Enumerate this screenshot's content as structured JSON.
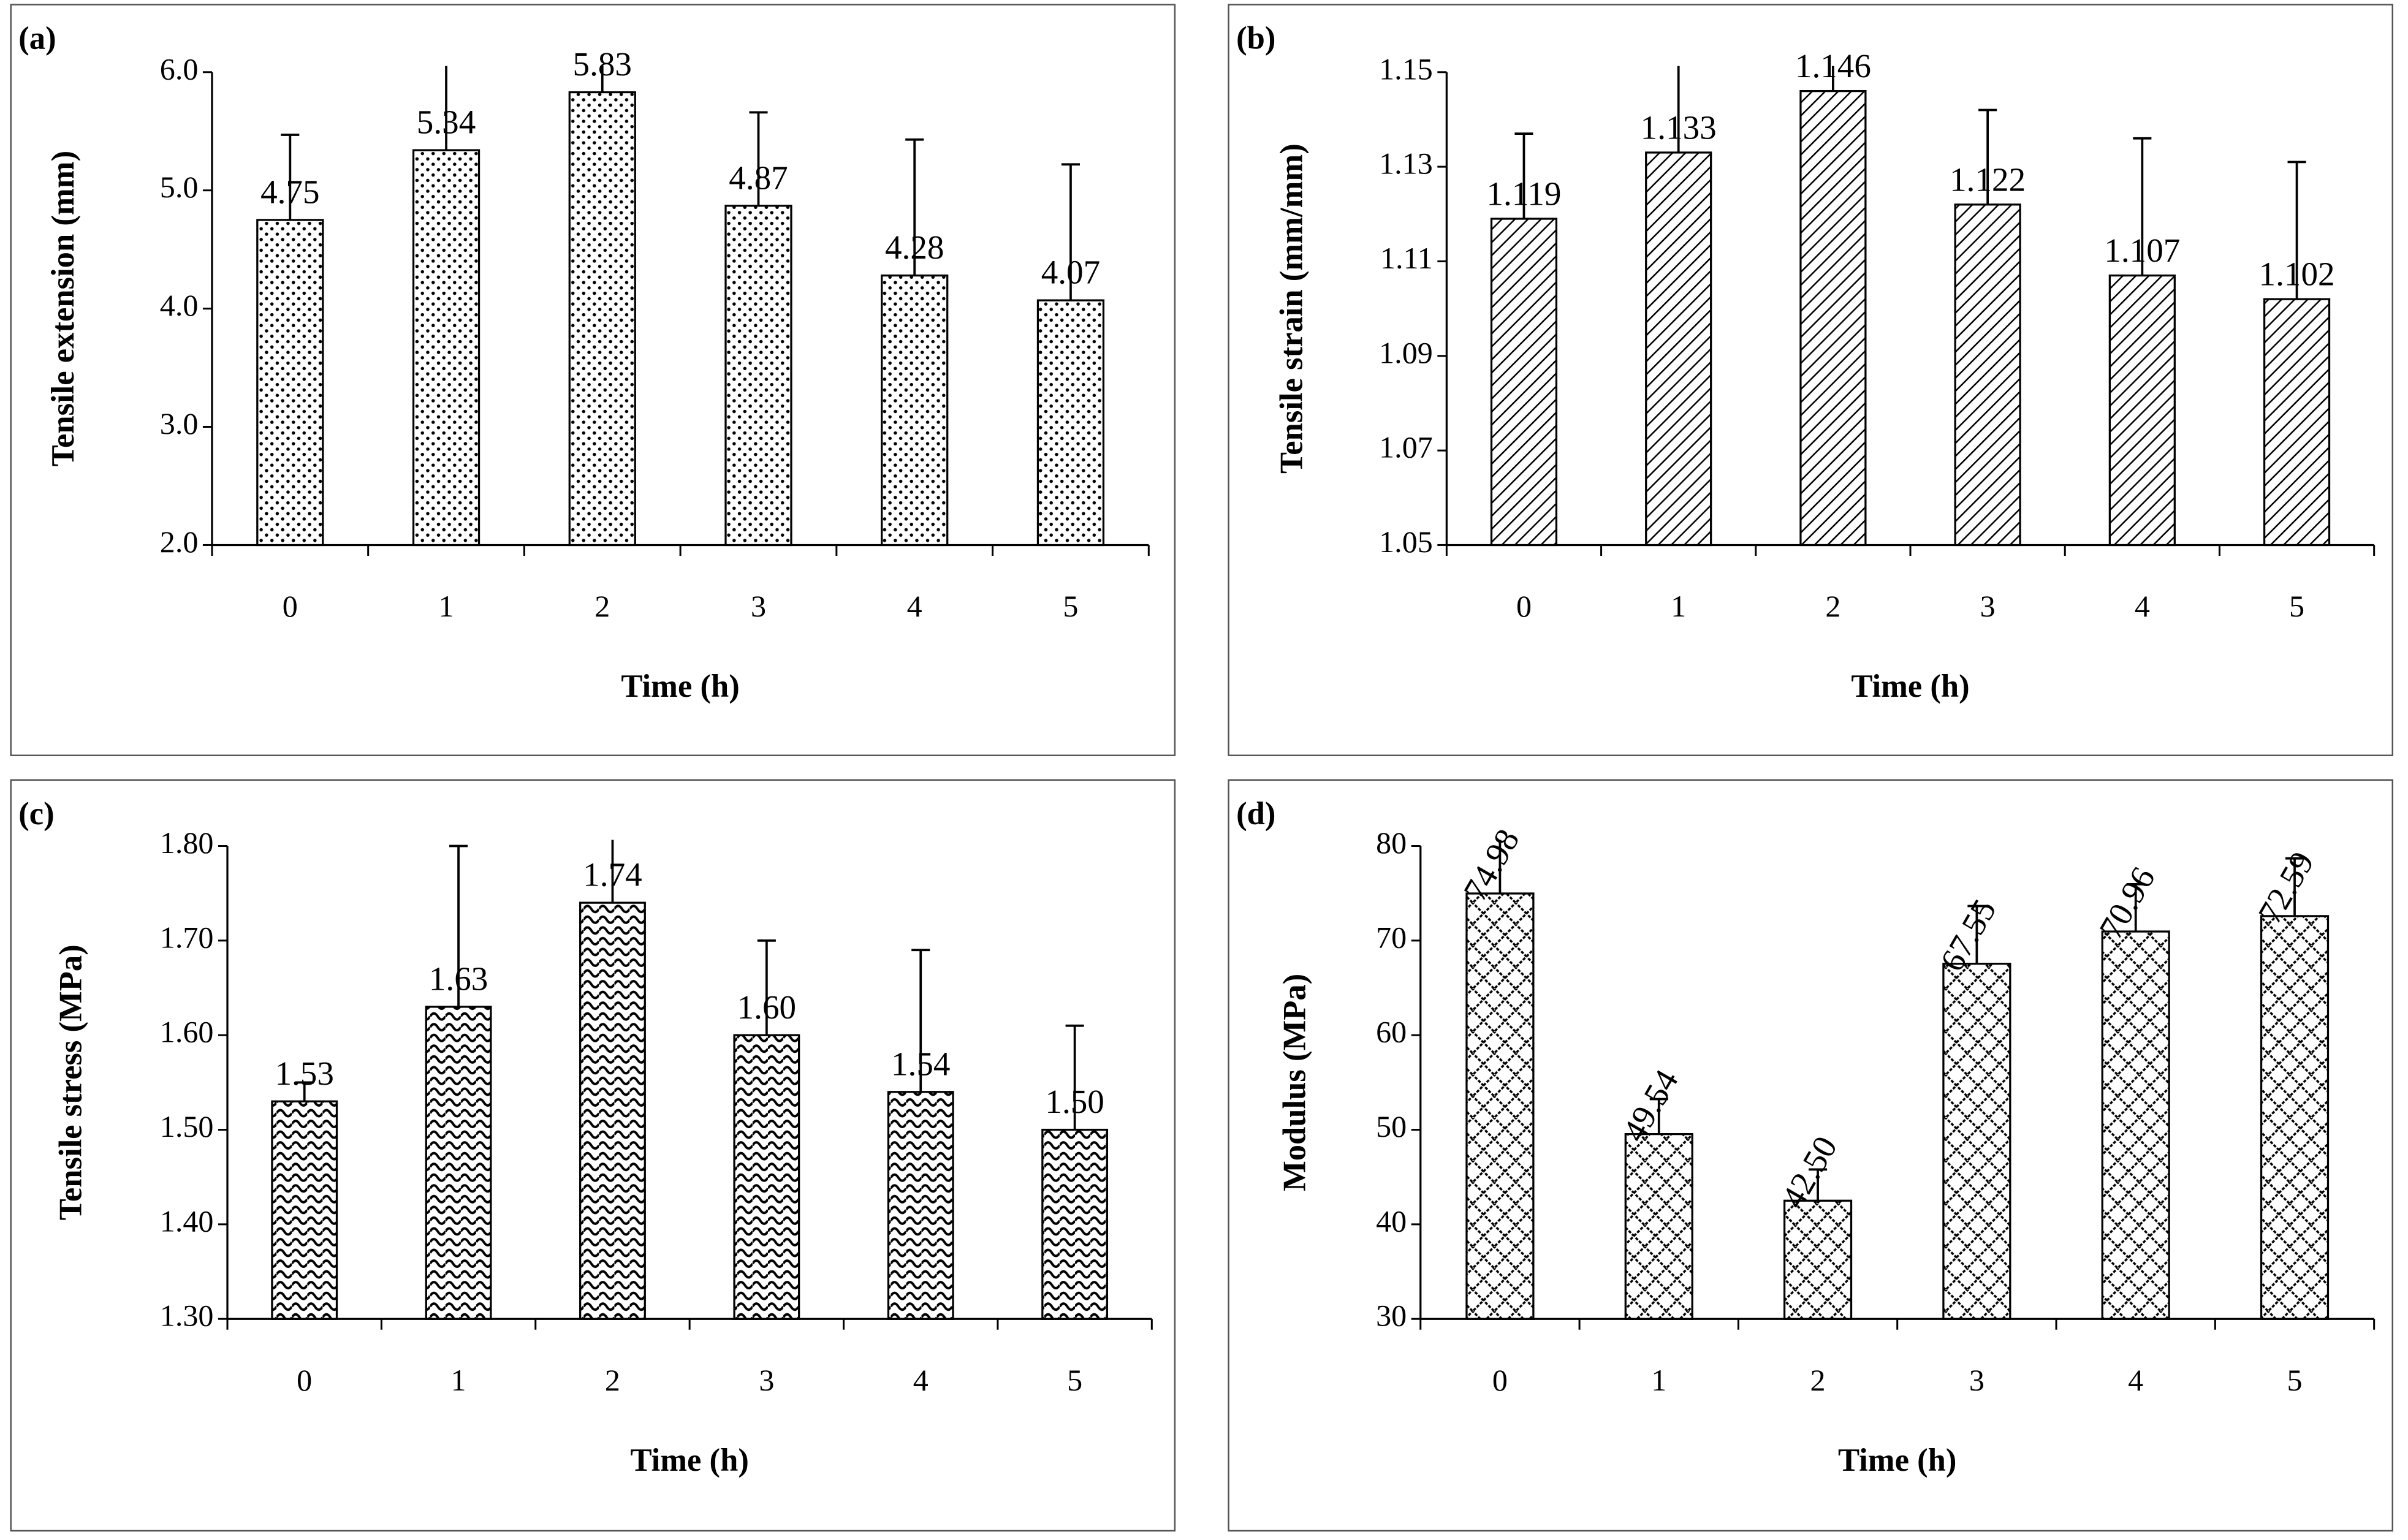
{
  "chart_data": [
    {
      "type": "bar",
      "panel_label": "(a)",
      "ylabel": "Tensile extension (mm)",
      "xlabel": "Time (h)",
      "categories": [
        "0",
        "1",
        "2",
        "3",
        "4",
        "5"
      ],
      "values": [
        4.75,
        5.34,
        5.83,
        4.87,
        4.28,
        4.07
      ],
      "errors": [
        0.72,
        0.87,
        0.58,
        0.79,
        1.15,
        1.15
      ],
      "ylim": [
        2,
        6
      ],
      "yticks": [
        {
          "value": 2,
          "label": "2.0"
        },
        {
          "value": 3,
          "label": "3.0"
        },
        {
          "value": 4,
          "label": "4.0"
        },
        {
          "value": 5,
          "label": "5.0"
        },
        {
          "value": 6,
          "label": "6.0"
        }
      ]
    },
    {
      "type": "bar",
      "panel_label": "(b)",
      "ylabel": "Tensile strain (mm/mm)",
      "xlabel": "Time (h)",
      "categories": [
        "0",
        "1",
        "2",
        "3",
        "4",
        "5"
      ],
      "values": [
        1.119,
        1.133,
        1.146,
        1.122,
        1.107,
        1.102
      ],
      "errors": [
        0.018,
        0.022,
        0.015,
        0.02,
        0.029,
        0.029
      ],
      "ylim": [
        1.05,
        1.15
      ],
      "yticks": [
        1.05,
        1.07,
        1.09,
        1.11,
        1.13,
        1.15
      ]
    },
    {
      "type": "bar",
      "panel_label": "(c)",
      "ylabel": "Tensile stress (MPa)",
      "xlabel": "Time (h)",
      "categories": [
        "0",
        "1",
        "2",
        "3",
        "4",
        "5"
      ],
      "values": [
        1.53,
        1.63,
        1.74,
        1.6,
        1.54,
        1.5
      ],
      "value_labels": [
        "1.53",
        "1.63",
        "1.74",
        "1.60",
        "1.54",
        "1.50"
      ],
      "errors": [
        0.02,
        0.17,
        0.165,
        0.1,
        0.15,
        0.11
      ],
      "ylim": [
        1.3,
        1.8
      ],
      "yticks": [
        {
          "value": 1.3,
          "label": "1.30"
        },
        {
          "value": 1.4,
          "label": "1.40"
        },
        {
          "value": 1.5,
          "label": "1.50"
        },
        {
          "value": 1.6,
          "label": "1.60"
        },
        {
          "value": 1.7,
          "label": "1.70"
        },
        {
          "value": 1.8,
          "label": "1.80"
        }
      ]
    },
    {
      "type": "bar",
      "panel_label": "(d)",
      "ylabel": "Modulus (MPa)",
      "xlabel": "Time (h)",
      "categories": [
        "0",
        "1",
        "2",
        "3",
        "4",
        "5"
      ],
      "values": [
        74.98,
        49.54,
        42.5,
        67.55,
        70.96,
        72.59
      ],
      "value_labels": [
        "74.98",
        "49.54",
        "42.50",
        "67.55",
        "70.96",
        "72.59"
      ],
      "errors": [
        6.5,
        3.7,
        3.3,
        6.1,
        5,
        6.1
      ],
      "ylim": [
        30,
        80
      ],
      "yticks": [
        30,
        40,
        50,
        60,
        70,
        80
      ]
    }
  ]
}
